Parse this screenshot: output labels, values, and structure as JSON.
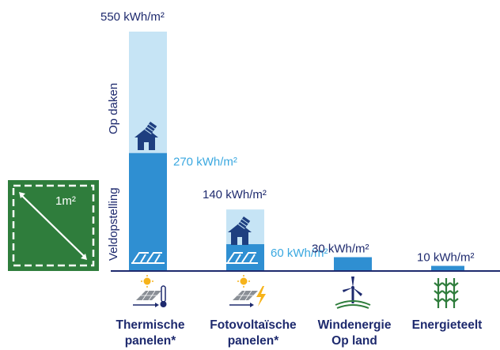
{
  "chart_data": {
    "type": "bar",
    "title": "",
    "xlabel": "",
    "ylabel": "",
    "ylim": [
      0,
      550
    ],
    "categories": [
      {
        "line1": "Thermische",
        "line2": "panelen*"
      },
      {
        "line1": "Fotovoltaïsche",
        "line2": "panelen*"
      },
      {
        "line1": "Windenergie",
        "line2": "Op land"
      },
      {
        "line1": "Energieteelt",
        "line2": ""
      }
    ],
    "series": [
      {
        "name": "Veldopstelling",
        "values": [
          270,
          60,
          30,
          10
        ]
      },
      {
        "name": "Op daken",
        "values": [
          550,
          140,
          null,
          null
        ]
      }
    ],
    "value_labels": {
      "field": [
        "270 kWh/m²",
        "60 kWh/m²",
        "30 kWh/m²",
        "10 kWh/m²"
      ],
      "roof": [
        "550 kWh/m²",
        "140 kWh/m²"
      ]
    },
    "series_labels": {
      "roof": "Op daken",
      "field": "Veldopstelling"
    },
    "area_label": "1m²",
    "icons": [
      "solar-thermal-panel-thermometer-icon",
      "solar-pv-panel-lightning-icon",
      "wind-turbine-land-icon",
      "energy-crops-icon"
    ],
    "colors": {
      "field_bar": "#2f8fd2",
      "roof_bar": "#c6e4f5",
      "field_label": "#3aa8e0",
      "text_dark": "#1e2a6e",
      "baseline": "#1e2a6e",
      "green": "#2f7d3c",
      "house": "#1e3f80"
    }
  }
}
